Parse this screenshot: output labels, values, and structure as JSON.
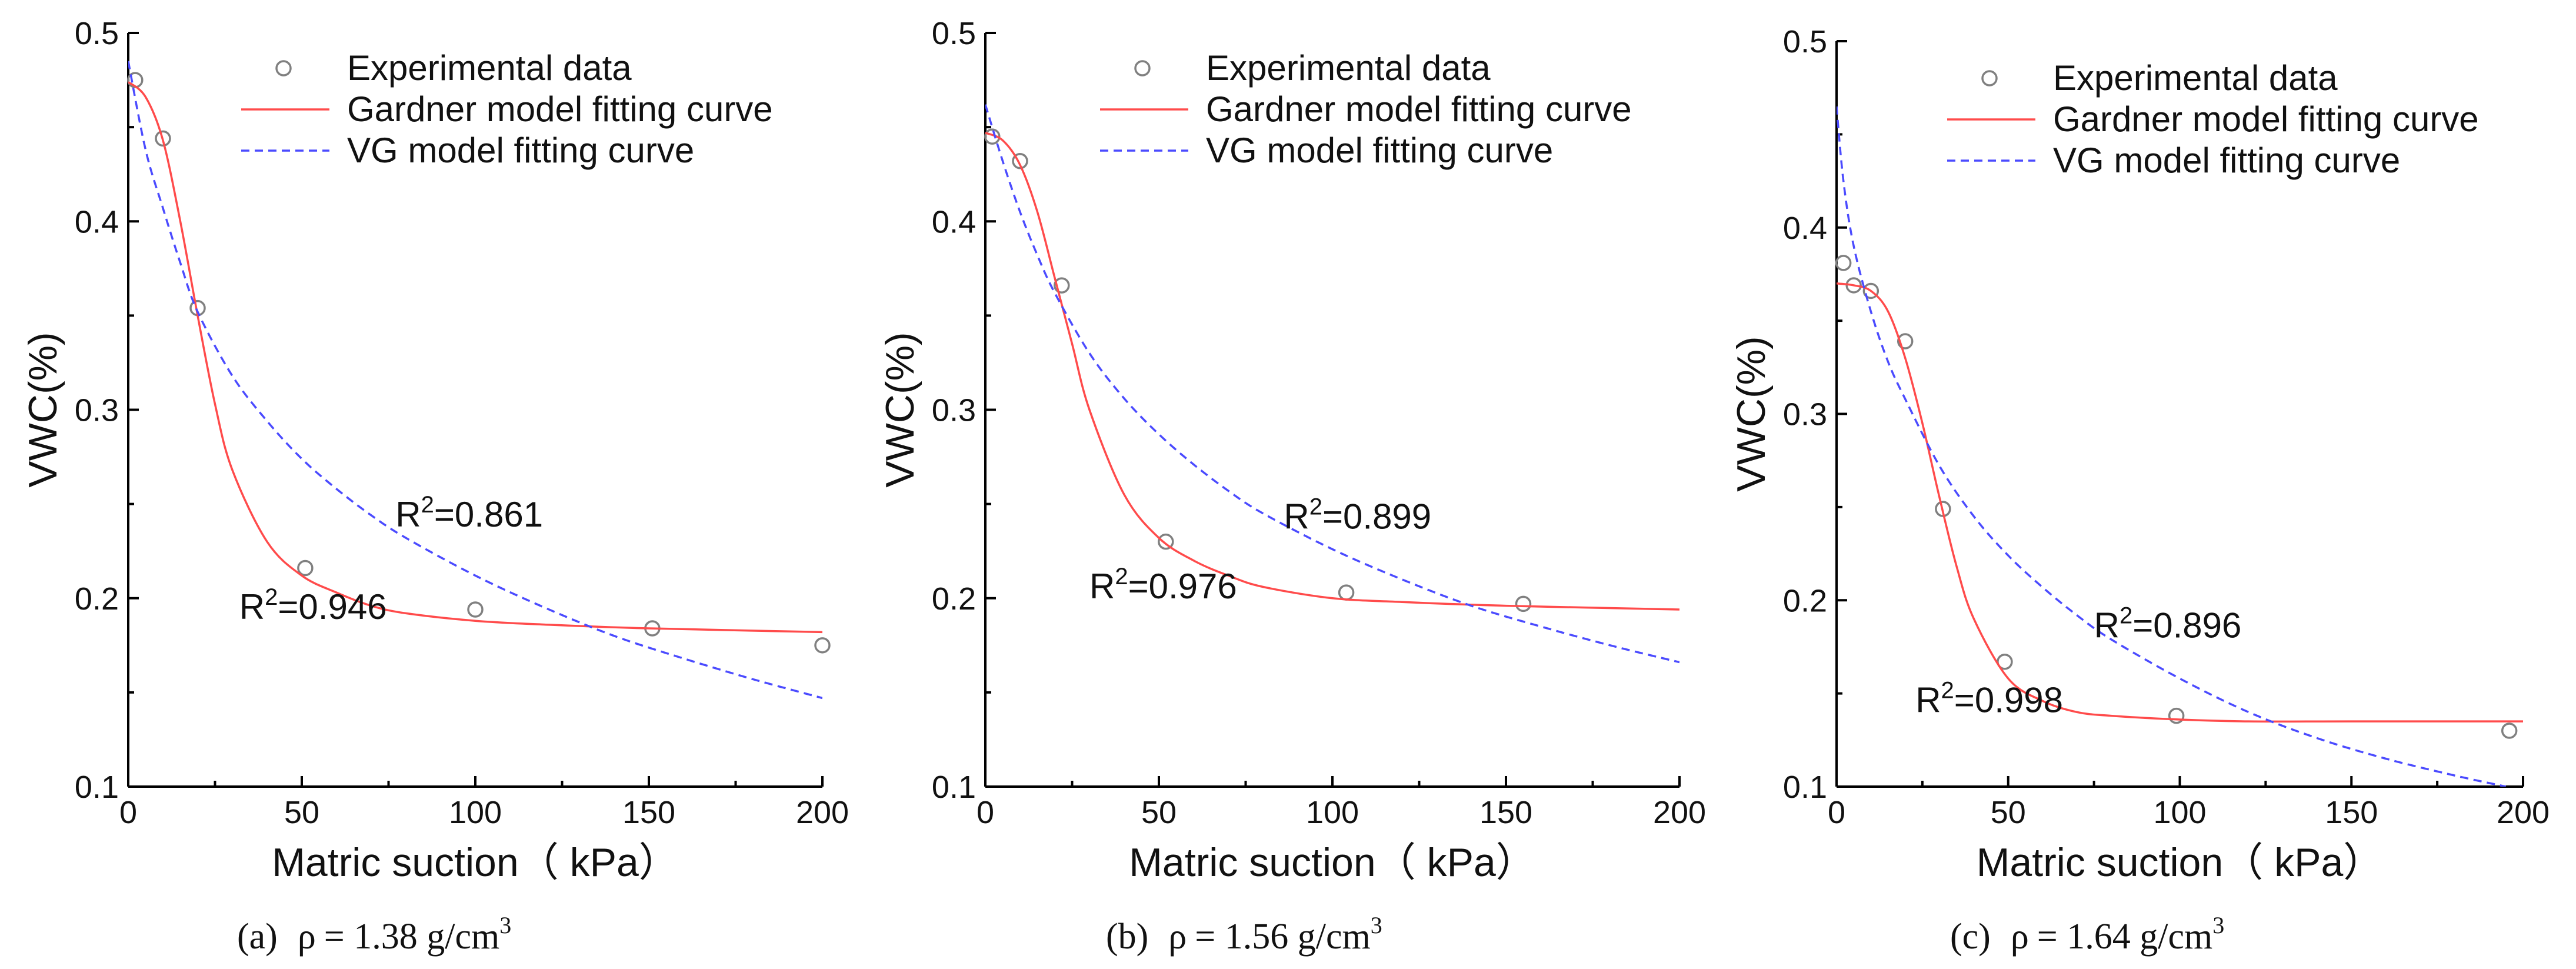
{
  "chart_data": [
    {
      "type": "line",
      "panel": "a",
      "caption": {
        "label": "(a)",
        "symbol": "ρ",
        "value": "= 1.38 g/cm",
        "exponent": "3"
      },
      "xlabel": "Matric suction（ kPa）",
      "ylabel": "VWC(%)",
      "xlim": [
        0,
        200
      ],
      "ylim": [
        0.1,
        0.5
      ],
      "xticks": [
        0,
        50,
        100,
        150,
        200
      ],
      "yticks": [
        0.1,
        0.2,
        0.3,
        0.4,
        0.5
      ],
      "legend": {
        "placement": "top-right",
        "entries": [
          "Experimental data",
          "Gardner model fitting curve",
          "VG model fitting curve"
        ]
      },
      "series": [
        {
          "name": "Experimental data",
          "style": "scatter",
          "x": [
            2,
            10,
            20,
            51,
            100,
            151,
            200
          ],
          "y": [
            0.475,
            0.444,
            0.354,
            0.216,
            0.194,
            0.184,
            0.175
          ]
        },
        {
          "name": "Gardner model fitting curve",
          "style": "line",
          "color": "#ff4b4b",
          "x": [
            0,
            5,
            10,
            15,
            20,
            25,
            30,
            40,
            50,
            60,
            70,
            80,
            100,
            120,
            150,
            200
          ],
          "y": [
            0.474,
            0.466,
            0.443,
            0.4,
            0.35,
            0.303,
            0.268,
            0.23,
            0.212,
            0.203,
            0.196,
            0.192,
            0.188,
            0.186,
            0.184,
            0.182
          ]
        },
        {
          "name": "VG model fitting curve",
          "style": "dashed",
          "color": "#4b4bff",
          "x": [
            0,
            5,
            10,
            15,
            20,
            30,
            40,
            50,
            60,
            70,
            80,
            100,
            120,
            140,
            160,
            180,
            200
          ],
          "y": [
            0.485,
            0.438,
            0.407,
            0.378,
            0.352,
            0.318,
            0.294,
            0.274,
            0.258,
            0.244,
            0.232,
            0.212,
            0.195,
            0.18,
            0.168,
            0.157,
            0.147
          ]
        }
      ],
      "annotations": [
        {
          "base": "R",
          "sup": "2",
          "value": "=0.861",
          "x": 77,
          "y": 0.238
        },
        {
          "base": "R",
          "sup": "2",
          "value": "=0.946",
          "x": 32,
          "y": 0.189
        }
      ]
    },
    {
      "type": "line",
      "panel": "b",
      "caption": {
        "label": "(b)",
        "symbol": "ρ",
        "value": "= 1.56 g/cm",
        "exponent": "3"
      },
      "xlabel": "Matric suction（ kPa）",
      "ylabel": "VWC(%)",
      "xlim": [
        0,
        200
      ],
      "ylim": [
        0.1,
        0.5
      ],
      "xticks": [
        0,
        50,
        100,
        150,
        200
      ],
      "yticks": [
        0.1,
        0.2,
        0.3,
        0.4,
        0.5
      ],
      "legend": {
        "placement": "top-right",
        "entries": [
          "Experimental data",
          "Gardner model fitting curve",
          "VG model fitting curve"
        ]
      },
      "series": [
        {
          "name": "Experimental data",
          "style": "scatter",
          "x": [
            2,
            10,
            22,
            52,
            104,
            155
          ],
          "y": [
            0.445,
            0.432,
            0.366,
            0.23,
            0.203,
            0.197
          ]
        },
        {
          "name": "Gardner model fitting curve",
          "style": "line",
          "color": "#ff4b4b",
          "x": [
            0,
            5,
            10,
            15,
            20,
            25,
            30,
            40,
            50,
            60,
            70,
            80,
            100,
            120,
            150,
            200
          ],
          "y": [
            0.447,
            0.443,
            0.43,
            0.405,
            0.37,
            0.335,
            0.3,
            0.255,
            0.232,
            0.22,
            0.212,
            0.206,
            0.2,
            0.198,
            0.196,
            0.194
          ]
        },
        {
          "name": "VG model fitting curve",
          "style": "dashed",
          "color": "#4b4bff",
          "x": [
            0,
            5,
            10,
            15,
            20,
            30,
            40,
            50,
            60,
            70,
            80,
            100,
            120,
            140,
            160,
            180,
            200
          ],
          "y": [
            0.462,
            0.432,
            0.405,
            0.382,
            0.362,
            0.33,
            0.306,
            0.287,
            0.271,
            0.257,
            0.245,
            0.226,
            0.21,
            0.196,
            0.185,
            0.175,
            0.166
          ]
        }
      ],
      "annotations": [
        {
          "base": "R",
          "sup": "2",
          "value": "=0.899",
          "x": 86,
          "y": 0.237
        },
        {
          "base": "R",
          "sup": "2",
          "value": "=0.976",
          "x": 30,
          "y": 0.2
        }
      ]
    },
    {
      "type": "line",
      "panel": "c",
      "caption": {
        "label": "(c)",
        "symbol": "ρ",
        "value": "= 1.64 g/cm",
        "exponent": "3"
      },
      "xlabel": "Matric suction（ kPa）",
      "ylabel": "VWC(%)",
      "xlim": [
        0,
        200
      ],
      "ylim": [
        0.1,
        0.5
      ],
      "xticks": [
        0,
        50,
        100,
        150,
        200
      ],
      "yticks": [
        0.1,
        0.2,
        0.3,
        0.4,
        0.5
      ],
      "legend": {
        "placement": "top-right",
        "entries": [
          "Experimental data",
          "Gardner model fitting curve",
          "VG model fitting curve"
        ]
      },
      "series": [
        {
          "name": "Experimental data",
          "style": "scatter",
          "x": [
            2,
            5,
            10,
            20,
            31,
            49,
            99,
            196
          ],
          "y": [
            0.381,
            0.369,
            0.366,
            0.339,
            0.249,
            0.167,
            0.138,
            0.13
          ]
        },
        {
          "name": "Gardner model fitting curve",
          "style": "line",
          "color": "#ff4b4b",
          "x": [
            0,
            5,
            10,
            15,
            20,
            25,
            30,
            35,
            40,
            50,
            60,
            70,
            80,
            100,
            120,
            150,
            200
          ],
          "y": [
            0.37,
            0.369,
            0.366,
            0.355,
            0.33,
            0.295,
            0.255,
            0.218,
            0.19,
            0.158,
            0.146,
            0.14,
            0.138,
            0.136,
            0.135,
            0.135,
            0.135
          ]
        },
        {
          "name": "VG model fitting curve",
          "style": "dashed",
          "color": "#4b4bff",
          "x": [
            0,
            2,
            5,
            10,
            15,
            20,
            30,
            40,
            50,
            60,
            70,
            80,
            100,
            120,
            140,
            160,
            180,
            195
          ],
          "y": [
            0.465,
            0.425,
            0.39,
            0.355,
            0.328,
            0.308,
            0.272,
            0.245,
            0.224,
            0.207,
            0.192,
            0.179,
            0.158,
            0.14,
            0.126,
            0.115,
            0.106,
            0.1
          ]
        }
      ],
      "annotations": [
        {
          "base": "R",
          "sup": "2",
          "value": "=0.896",
          "x": 75,
          "y": 0.18
        },
        {
          "base": "R",
          "sup": "2",
          "value": "=0.998",
          "x": 23,
          "y": 0.14
        }
      ]
    }
  ]
}
